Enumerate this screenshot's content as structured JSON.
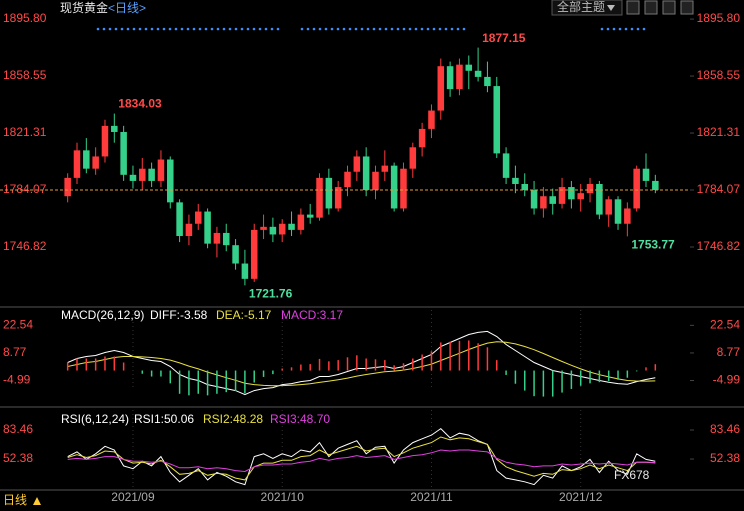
{
  "ui": {
    "theme": "全部主题",
    "period": "日线",
    "watermark": "FX678"
  },
  "chart_data": [
    {
      "type": "candlestick",
      "title": "现货黄金",
      "subtitle": "<日线>",
      "up_color": "#ff3b3b",
      "down_color": "#35d08a",
      "ylim": [
        1708.9,
        1905.0
      ],
      "yticks": [
        {
          "value": 1895.8,
          "label": "1895.80"
        },
        1858.55,
        1821.31,
        1784.07,
        1746.82
      ],
      "categories": [
        null,
        null,
        null,
        null,
        null,
        null,
        null,
        "2021/09",
        null,
        null,
        null,
        null,
        null,
        null,
        null,
        null,
        null,
        null,
        null,
        null,
        null,
        null,
        null,
        "2021/10",
        null,
        null,
        null,
        null,
        null,
        null,
        null,
        null,
        null,
        null,
        null,
        null,
        null,
        null,
        null,
        "2021/11",
        null,
        null,
        null,
        null,
        null,
        null,
        null,
        null,
        null,
        null,
        null,
        null,
        null,
        null,
        null,
        "2021/12",
        null,
        null,
        null,
        null,
        null,
        null,
        null,
        null
      ],
      "candles": [
        [
          1780,
          1795,
          1776,
          1792
        ],
        [
          1792,
          1815,
          1788,
          1810
        ],
        [
          1810,
          1818,
          1795,
          1798
        ],
        [
          1798,
          1812,
          1794,
          1806
        ],
        [
          1806,
          1830,
          1802,
          1826
        ],
        [
          1826,
          1834.03,
          1815,
          1822
        ],
        [
          1822,
          1826,
          1790,
          1794
        ],
        [
          1794,
          1800,
          1785,
          1790
        ],
        [
          1790,
          1805,
          1784,
          1798
        ],
        [
          1798,
          1802,
          1786,
          1790
        ],
        [
          1790,
          1810,
          1786,
          1804
        ],
        [
          1804,
          1806,
          1772,
          1776
        ],
        [
          1776,
          1778,
          1750,
          1754
        ],
        [
          1754,
          1768,
          1748,
          1762
        ],
        [
          1762,
          1775,
          1758,
          1770
        ],
        [
          1770,
          1772,
          1746,
          1749
        ],
        [
          1749,
          1760,
          1740,
          1756
        ],
        [
          1756,
          1762,
          1744,
          1748
        ],
        [
          1748,
          1752,
          1732,
          1736
        ],
        [
          1736,
          1745,
          1721.76,
          1726
        ],
        [
          1726,
          1762,
          1724,
          1758
        ],
        [
          1758,
          1768,
          1752,
          1760
        ],
        [
          1760,
          1766,
          1750,
          1755
        ],
        [
          1755,
          1765,
          1750,
          1762
        ],
        [
          1762,
          1770,
          1754,
          1758
        ],
        [
          1758,
          1772,
          1755,
          1768
        ],
        [
          1768,
          1775,
          1762,
          1766
        ],
        [
          1766,
          1795,
          1764,
          1792
        ],
        [
          1792,
          1798,
          1768,
          1772
        ],
        [
          1772,
          1790,
          1770,
          1786
        ],
        [
          1786,
          1800,
          1780,
          1796
        ],
        [
          1796,
          1810,
          1790,
          1806
        ],
        [
          1806,
          1812,
          1780,
          1784
        ],
        [
          1784,
          1800,
          1778,
          1796
        ],
        [
          1796,
          1810,
          1790,
          1800
        ],
        [
          1800,
          1802,
          1770,
          1772
        ],
        [
          1772,
          1802,
          1770,
          1798
        ],
        [
          1798,
          1815,
          1792,
          1812
        ],
        [
          1812,
          1828,
          1806,
          1824
        ],
        [
          1824,
          1840,
          1818,
          1836
        ],
        [
          1836,
          1870,
          1830,
          1865
        ],
        [
          1865,
          1868,
          1845,
          1850
        ],
        [
          1850,
          1870,
          1846,
          1866
        ],
        [
          1866,
          1872,
          1850,
          1862
        ],
        [
          1862,
          1877.15,
          1855,
          1858
        ],
        [
          1858,
          1868,
          1848,
          1852
        ],
        [
          1852,
          1858,
          1805,
          1808
        ],
        [
          1808,
          1812,
          1788,
          1792
        ],
        [
          1792,
          1800,
          1782,
          1788
        ],
        [
          1788,
          1795,
          1780,
          1784
        ],
        [
          1784,
          1790,
          1768,
          1772
        ],
        [
          1772,
          1786,
          1766,
          1780
        ],
        [
          1780,
          1785,
          1768,
          1775
        ],
        [
          1775,
          1792,
          1772,
          1786
        ],
        [
          1786,
          1790,
          1772,
          1778
        ],
        [
          1778,
          1788,
          1770,
          1782
        ],
        [
          1782,
          1792,
          1776,
          1788
        ],
        [
          1788,
          1790,
          1765,
          1768
        ],
        [
          1768,
          1780,
          1760,
          1778
        ],
        [
          1778,
          1780,
          1758,
          1762
        ],
        [
          1762,
          1776,
          1753.77,
          1772
        ],
        [
          1772,
          1800,
          1770,
          1798
        ],
        [
          1798,
          1808,
          1786,
          1790
        ],
        [
          1790,
          1794,
          1782,
          1784.07
        ]
      ],
      "annotations": [
        {
          "text": "1834.03",
          "value": 1834.03
        },
        {
          "text": "1721.76",
          "value": 1721.76
        },
        {
          "text": "1877.15",
          "value": 1877.15
        },
        {
          "text": "1753.77",
          "value": 1753.77
        }
      ]
    },
    {
      "type": "macd",
      "title": "MACD(26,12,9)",
      "ylim": [
        -17.2,
        30.2
      ],
      "yticks": [
        22.54,
        8.77,
        -4.99
      ],
      "series": [
        {
          "name": "DIFF:-3.58",
          "color": "#ffffff",
          "kind": "line",
          "values": [
            4,
            6,
            7,
            7.5,
            9,
            10,
            9,
            7,
            6,
            5,
            4.5,
            2,
            -2,
            -4,
            -5,
            -7,
            -8,
            -9,
            -10,
            -12,
            -10,
            -9,
            -8.5,
            -7,
            -6.5,
            -5.5,
            -5,
            -3,
            -3,
            -2,
            -0.5,
            1,
            1,
            1.5,
            2,
            1,
            2,
            4,
            6,
            8,
            12,
            14,
            16,
            18,
            19,
            19.5,
            17,
            13,
            10,
            7,
            4,
            2,
            0,
            -1,
            -2,
            -3,
            -4,
            -5,
            -5.8,
            -6.5,
            -6.8,
            -5.5,
            -4.5,
            -3.58
          ]
        },
        {
          "name": "DEA:-5.17",
          "color": "#e8e040",
          "kind": "line",
          "values": [
            2,
            3,
            4,
            4.5,
            5.5,
            6.5,
            7,
            7,
            6.8,
            6.5,
            6,
            5.2,
            3.8,
            2.2,
            0.8,
            -0.8,
            -2.2,
            -3.6,
            -4.9,
            -6.3,
            -7,
            -7.4,
            -7.6,
            -7.5,
            -7.3,
            -7,
            -6.6,
            -5.9,
            -5.3,
            -4.6,
            -3.8,
            -2.8,
            -2,
            -1.3,
            -0.6,
            -0.3,
            0.2,
            1,
            2,
            3.2,
            5,
            6.8,
            8.6,
            10.5,
            12.2,
            13.7,
            14.4,
            14.1,
            13.3,
            12,
            10.4,
            8.5,
            6.5,
            4.5,
            2.6,
            0.8,
            -0.8,
            -2.1,
            -3.2,
            -4.2,
            -5,
            -5.3,
            -5.3,
            -5.17
          ]
        },
        {
          "name": "MACD:3.17",
          "color": "#e040e0",
          "kind": "bar",
          "values": [
            4,
            6,
            6,
            6,
            7,
            7,
            4,
            0,
            -1.6,
            -3,
            -3,
            -6.4,
            -11.6,
            -12.4,
            -11.6,
            -12.4,
            -11.6,
            -10.8,
            -10.2,
            -11.4,
            -6,
            -3.2,
            -1.8,
            1,
            1.6,
            3,
            3.2,
            5.8,
            4.6,
            5.2,
            6.6,
            7.6,
            6,
            5.6,
            5.2,
            2.6,
            3.6,
            6,
            8,
            9.6,
            14,
            14.4,
            14.8,
            15,
            13.6,
            11.6,
            5.2,
            -2.2,
            -6.6,
            -10,
            -12.8,
            -13,
            -13,
            -11,
            -9.2,
            -7.6,
            -6.4,
            -5.8,
            -5.2,
            -4.6,
            -3.6,
            -0.4,
            1.6,
            3.17
          ]
        }
      ]
    },
    {
      "type": "rsi",
      "title": "RSI(6,12,24)",
      "ylim": [
        19.2,
        104.9
      ],
      "yticks": [
        83.46,
        52.38
      ],
      "series": [
        {
          "name": "RSI1:50.06",
          "color": "#ffffff",
          "values": [
            55,
            60,
            52,
            58,
            66,
            62,
            45,
            42,
            50,
            45,
            55,
            38,
            28,
            35,
            42,
            30,
            38,
            34,
            28,
            25,
            55,
            58,
            53,
            58,
            55,
            62,
            60,
            70,
            55,
            64,
            68,
            72,
            58,
            65,
            66,
            48,
            62,
            70,
            74,
            78,
            85,
            75,
            80,
            78,
            72,
            68,
            40,
            32,
            30,
            28,
            25,
            35,
            32,
            45,
            40,
            44,
            52,
            38,
            50,
            40,
            36,
            58,
            52,
            50.06
          ]
        },
        {
          "name": "RSI2:48.28",
          "color": "#e8e040",
          "values": [
            54,
            57,
            54,
            56,
            61,
            60,
            52,
            48,
            49,
            47,
            51,
            44,
            36,
            37,
            40,
            35,
            37,
            36,
            32,
            30,
            44,
            48,
            48,
            51,
            51,
            55,
            56,
            62,
            57,
            60,
            63,
            66,
            61,
            63,
            64,
            55,
            59,
            64,
            67,
            70,
            76,
            73,
            75,
            74,
            71,
            68,
            52,
            44,
            40,
            37,
            34,
            37,
            36,
            41,
            40,
            42,
            46,
            42,
            46,
            43,
            40,
            49,
            49,
            48.28
          ]
        },
        {
          "name": "RSI3:48.70",
          "color": "#e040e0",
          "values": [
            52,
            53,
            52,
            53,
            55,
            55,
            52,
            50,
            50,
            49,
            50,
            47,
            43,
            43,
            44,
            42,
            43,
            42,
            40,
            39,
            44,
            46,
            46,
            47,
            47,
            49,
            50,
            53,
            51,
            53,
            54,
            56,
            54,
            55,
            56,
            52,
            54,
            56,
            57,
            59,
            62,
            61,
            62,
            62,
            61,
            60,
            53,
            49,
            47,
            46,
            44,
            45,
            45,
            47,
            46,
            47,
            48,
            47,
            48,
            47,
            46,
            49,
            49,
            48.7
          ]
        }
      ]
    }
  ]
}
